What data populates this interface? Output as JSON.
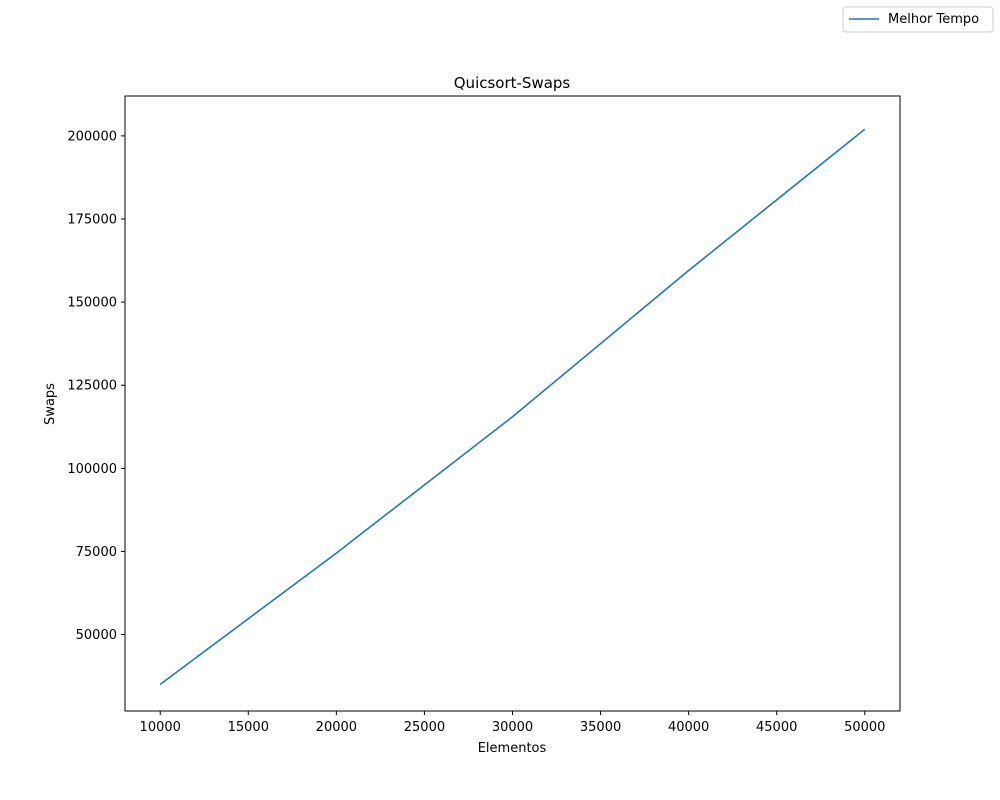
{
  "chart_data": {
    "type": "line",
    "title": "Quicsort-Swaps",
    "xlabel": "Elementos",
    "ylabel": "Swaps",
    "xlim": [
      8000,
      52000
    ],
    "ylim": [
      27000,
      212000
    ],
    "x": [
      10000,
      20000,
      30000,
      40000,
      50000
    ],
    "xticks": [
      10000,
      15000,
      20000,
      25000,
      30000,
      35000,
      40000,
      45000,
      50000
    ],
    "yticks": [
      50000,
      75000,
      100000,
      125000,
      150000,
      175000,
      200000
    ],
    "series": [
      {
        "name": "Melhor Tempo",
        "color": "#1f77b4",
        "values": [
          35000,
          74500,
          115500,
          159500,
          202000
        ]
      }
    ],
    "legend": {
      "position": "top-right",
      "entries": [
        "Melhor Tempo"
      ]
    },
    "grid": false
  }
}
